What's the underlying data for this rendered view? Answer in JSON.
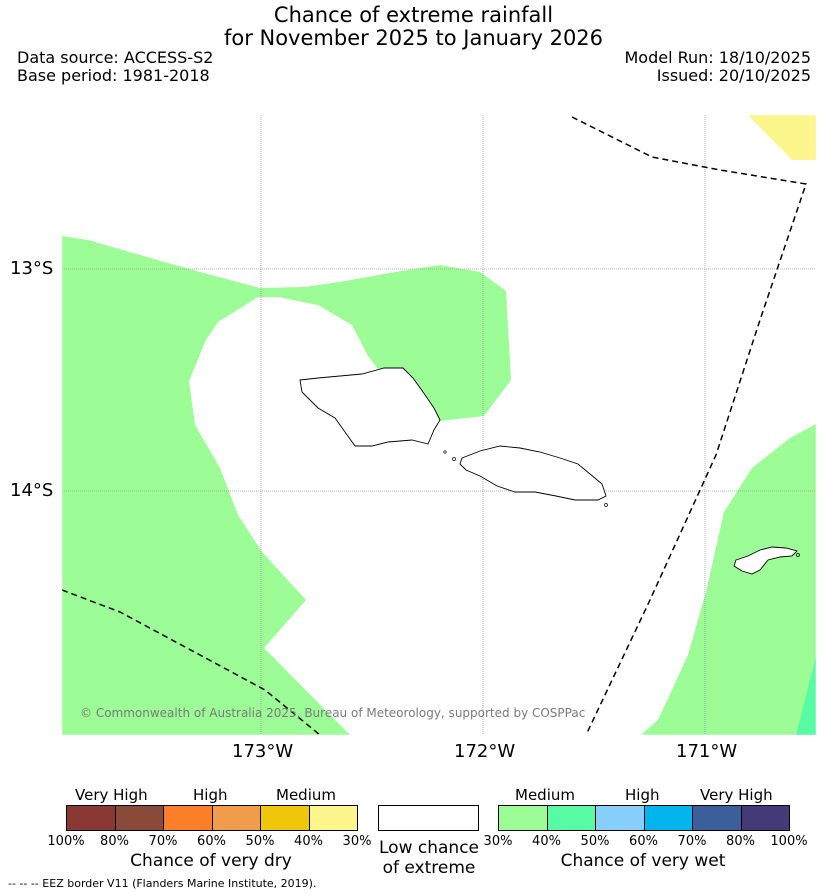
{
  "title": {
    "line1": "Chance of extreme rainfall",
    "line2": "for November 2025 to January 2026"
  },
  "meta": {
    "data_source": "Data source: ACCESS-S2",
    "base_period": "Base period: 1981-2018",
    "model_run": "Model Run: 18/10/2025",
    "issued": "Issued: 20/10/2025"
  },
  "map": {
    "lat_labels": [
      "13°S",
      "14°S"
    ],
    "lon_labels": [
      "173°W",
      "172°W",
      "171°W"
    ],
    "copyright": "© Commonwealth of Australia 2025, Bureau of Meteorology, supported by COSPPac",
    "fill_colors": {
      "wet_medium_30_40": "#9cfc96",
      "wet_medium_40_50": "#57fba4",
      "dry_medium_30_40": "#fcf68c"
    }
  },
  "legend": {
    "dry": {
      "headings": [
        "Very High",
        "High",
        "Medium"
      ],
      "ticks": [
        "100%",
        "80%",
        "70%",
        "60%",
        "50%",
        "40%",
        "30%"
      ],
      "colors": [
        "#8a3833",
        "#8a4a3a",
        "#fb7f29",
        "#ef9c4b",
        "#efc60a",
        "#fcf68c"
      ],
      "title": "Chance of very dry"
    },
    "low": {
      "line1": "Low chance",
      "line2": "of extreme"
    },
    "wet": {
      "headings": [
        "Medium",
        "High",
        "Very High"
      ],
      "ticks": [
        "30%",
        "40%",
        "50%",
        "60%",
        "70%",
        "80%",
        "100%"
      ],
      "colors": [
        "#9cfc96",
        "#57fba4",
        "#87cefa",
        "#02b5ec",
        "#3a5f9b",
        "#433a77"
      ],
      "title": "Chance of very wet"
    }
  },
  "footnote": "--  --  -- EEZ border V11 (Flanders Marine Institute, 2019)."
}
